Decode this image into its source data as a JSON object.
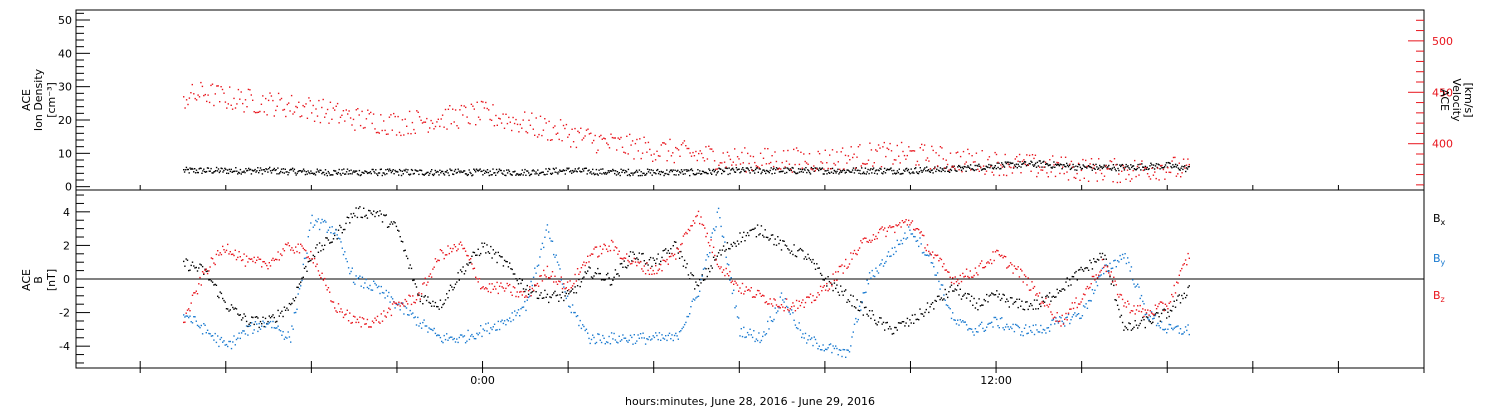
{
  "chart_data": [
    {
      "type": "scatter",
      "panel": "top",
      "y_left_label": [
        "ACE",
        "Ion Density",
        "[cm⁻³]"
      ],
      "y_right_label": [
        "ACE",
        "Velocity",
        "[km/s]"
      ],
      "ylim_left": [
        -1,
        53
      ],
      "yticks_left": [
        0,
        10,
        20,
        30,
        40,
        50
      ],
      "ylim_right": [
        355,
        530
      ],
      "yticks_right": [
        400,
        450,
        500
      ],
      "series": [
        {
          "color": "#000000",
          "axis": "left",
          "x_hours": [
            -7.0,
            -6.0,
            -5.0,
            -4.0,
            -3.0,
            -2.0,
            -1.0,
            0.0,
            1.0,
            2.0,
            3.0,
            4.0,
            5.0,
            6.0,
            7.0,
            8.0,
            9.0,
            10.0,
            11.0,
            12.0,
            13.0,
            14.0,
            15.0,
            16.0,
            16.5
          ],
          "values": [
            5,
            5,
            5,
            4.5,
            4.5,
            4.5,
            4.5,
            4.5,
            4.5,
            5,
            4.5,
            4.5,
            4.5,
            5,
            5,
            5,
            5,
            5,
            5.5,
            6.5,
            7,
            6,
            6,
            6.5,
            5.5
          ]
        },
        {
          "color": "#e8141c",
          "axis": "right",
          "x_hours": [
            -7.0,
            -6.5,
            -6.0,
            -5.0,
            -4.0,
            -3.0,
            -2.0,
            -1.0,
            0.0,
            1.0,
            2.0,
            3.0,
            4.0,
            5.0,
            6.0,
            7.0,
            8.0,
            9.0,
            10.0,
            11.0,
            12.0,
            13.0,
            14.0,
            15.0,
            16.0,
            16.5
          ],
          "values": [
            445,
            450,
            445,
            440,
            435,
            425,
            420,
            425,
            430,
            420,
            410,
            400,
            395,
            390,
            385,
            385,
            385,
            390,
            390,
            385,
            382,
            378,
            376,
            374,
            378,
            374
          ]
        }
      ]
    },
    {
      "type": "scatter",
      "panel": "bottom",
      "y_left_label": [
        "ACE",
        "B",
        "[nT]"
      ],
      "ylim": [
        -5.3,
        5.3
      ],
      "yticks": [
        4,
        2,
        0,
        -2,
        -4
      ],
      "zero_line": true,
      "legend": [
        {
          "label": "B",
          "sub": "x",
          "color": "#000000"
        },
        {
          "label": "B",
          "sub": "y",
          "color": "#1a7ad0"
        },
        {
          "label": "B",
          "sub": "z",
          "color": "#e8141c"
        }
      ],
      "series": [
        {
          "name": "Bx",
          "color": "#000000",
          "x_hours": [
            -7.0,
            -6.5,
            -6.0,
            -5.5,
            -5.0,
            -4.5,
            -4.0,
            -3.5,
            -3.0,
            -2.5,
            -2.0,
            -1.5,
            -1.0,
            -0.5,
            0.0,
            0.5,
            1.0,
            1.5,
            2.0,
            2.5,
            3.0,
            3.5,
            4.0,
            4.5,
            5.0,
            5.5,
            6.0,
            6.5,
            7.0,
            7.5,
            8.0,
            8.5,
            9.0,
            9.5,
            10.0,
            10.5,
            11.0,
            11.5,
            12.0,
            12.5,
            13.0,
            13.5,
            14.0,
            14.5,
            15.0,
            15.5,
            16.0,
            16.5
          ],
          "values": [
            1,
            0.5,
            -1.5,
            -2.5,
            -2.5,
            -1.5,
            1.5,
            2.5,
            4,
            4,
            3,
            -1,
            -1.5,
            0.5,
            2,
            1,
            -0.5,
            -1,
            -1,
            0.5,
            0,
            1.5,
            1,
            2,
            -0.5,
            1.5,
            2.5,
            3,
            2,
            1.5,
            0,
            -1,
            -2,
            -3,
            -2.5,
            -1.5,
            -0.5,
            -1.5,
            -1,
            -1.5,
            -1.5,
            -0.5,
            0.5,
            1.5,
            -3,
            -2.5,
            -2,
            -0.5
          ]
        },
        {
          "name": "By",
          "color": "#1a7ad0",
          "x_hours": [
            -7.0,
            -6.5,
            -6.0,
            -5.5,
            -5.0,
            -4.5,
            -4.0,
            -3.5,
            -3.0,
            -2.5,
            -2.0,
            -1.5,
            -1.0,
            -0.5,
            0.0,
            0.5,
            1.0,
            1.5,
            2.0,
            2.5,
            3.0,
            3.5,
            4.0,
            4.5,
            5.0,
            5.5,
            6.0,
            6.5,
            7.0,
            7.5,
            8.0,
            8.5,
            9.0,
            9.5,
            10.0,
            10.5,
            11.0,
            11.5,
            12.0,
            12.5,
            13.0,
            13.5,
            14.0,
            14.5,
            15.0,
            15.5,
            16.0,
            16.5
          ],
          "values": [
            -2,
            -3,
            -4,
            -3,
            -2.5,
            -3.5,
            3.5,
            3,
            0,
            -0.5,
            -1.5,
            -2.5,
            -3.5,
            -3.5,
            -3,
            -2.5,
            -1.5,
            3,
            -1.5,
            -3.5,
            -3.5,
            -3.5,
            -3.5,
            -3.5,
            -1,
            4,
            -3,
            -3.5,
            -1,
            -3.5,
            -4,
            -4.5,
            0,
            1.5,
            3,
            1,
            -2.5,
            -3,
            -2.5,
            -3,
            -3,
            -2.5,
            -2,
            0.5,
            1.5,
            -2,
            -3,
            -3
          ]
        },
        {
          "name": "Bz",
          "color": "#e8141c",
          "x_hours": [
            -7.0,
            -6.5,
            -6.0,
            -5.5,
            -5.0,
            -4.5,
            -4.0,
            -3.5,
            -3.0,
            -2.5,
            -2.0,
            -1.5,
            -1.0,
            -0.5,
            0.0,
            0.5,
            1.0,
            1.5,
            2.0,
            2.5,
            3.0,
            3.5,
            4.0,
            4.5,
            5.0,
            5.5,
            6.0,
            6.5,
            7.0,
            7.5,
            8.0,
            8.5,
            9.0,
            9.5,
            10.0,
            10.5,
            11.0,
            11.5,
            12.0,
            12.5,
            13.0,
            13.5,
            14.0,
            14.5,
            15.0,
            15.5,
            16.0,
            16.5
          ],
          "values": [
            -2.5,
            0.5,
            2,
            1,
            1,
            2,
            1.5,
            -1.5,
            -2.5,
            -2.5,
            -1.5,
            -1,
            1.5,
            2,
            -0.5,
            -0.5,
            -1,
            0.5,
            -0.5,
            1.5,
            2,
            1,
            0.5,
            1.5,
            4,
            1,
            -0.5,
            -1,
            -1.5,
            -1.5,
            -0.5,
            1,
            2.5,
            3,
            3.5,
            1.5,
            0,
            0.5,
            1.5,
            0.5,
            -1,
            -2.5,
            -1,
            1,
            -1.5,
            -2,
            -1.5,
            1.5
          ]
        }
      ]
    }
  ],
  "time_axis": {
    "range_hours": [
      -9.5,
      22
    ],
    "tick_labels": [
      "0:00",
      "12:00"
    ],
    "tick_label_hours": [
      0,
      12
    ],
    "major_tick_step_hours": 2,
    "xlabel": "hours:minutes, June 28, 2016 - June 29, 2016"
  },
  "colors": {
    "axes": "#000000",
    "velocity": "#e8141c",
    "by": "#1a7ad0",
    "bz": "#e8141c",
    "background": "#ffffff"
  }
}
